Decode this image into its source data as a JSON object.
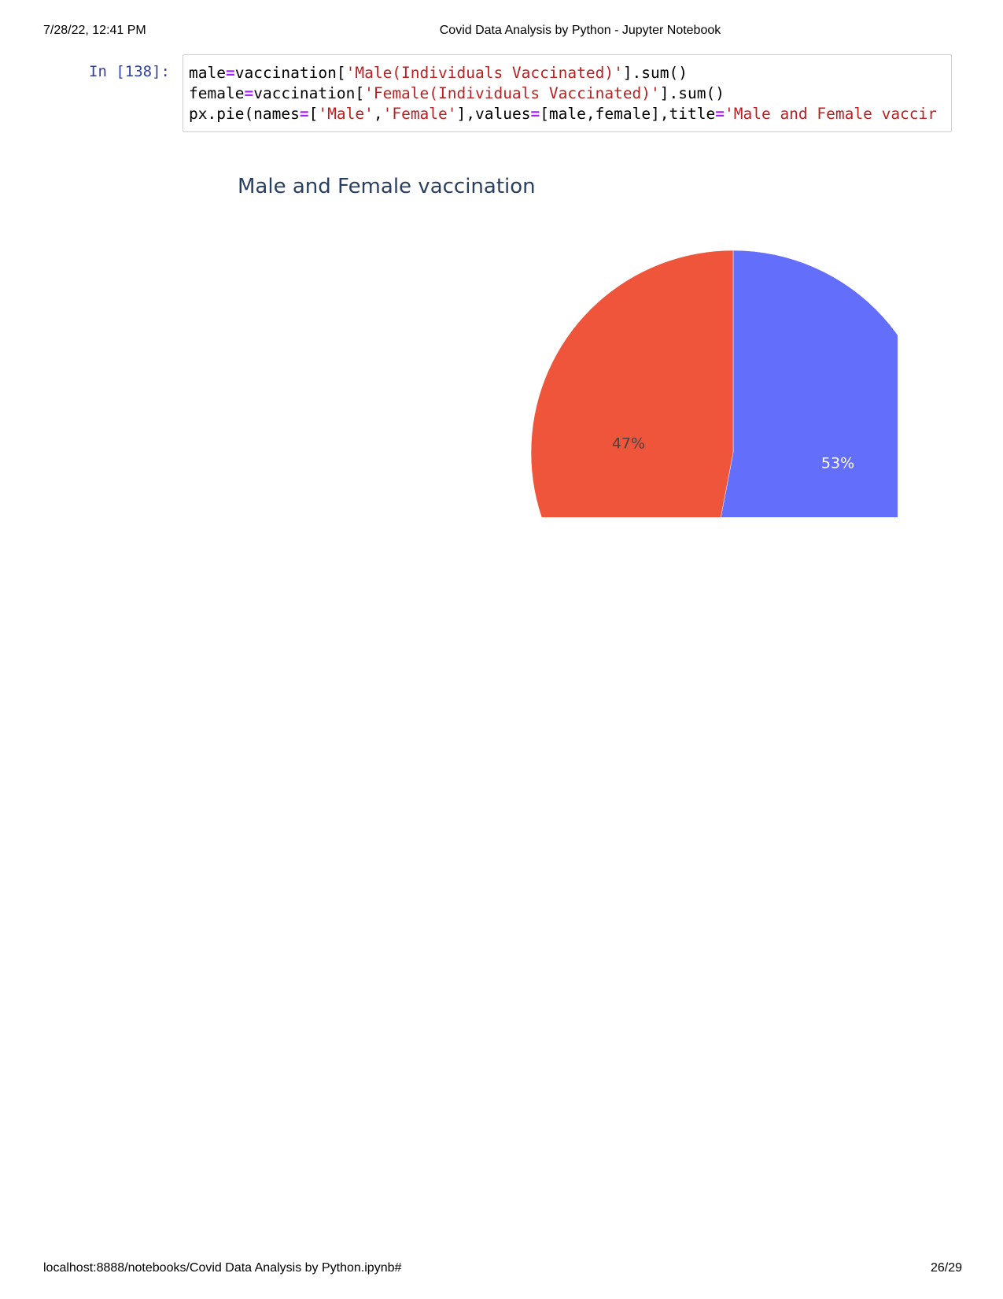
{
  "print_header": {
    "datetime": "7/28/22, 12:41 PM",
    "title": "Covid Data Analysis by Python - Jupyter Notebook"
  },
  "print_footer": {
    "url": "localhost:8888/notebooks/Covid Data Analysis by Python.ipynb#",
    "page": "26/29"
  },
  "cell": {
    "prompt": "In [138]:",
    "code_lines": [
      [
        {
          "t": "male",
          "k": "n"
        },
        {
          "t": "=",
          "k": "op"
        },
        {
          "t": "vaccination[",
          "k": "n"
        },
        {
          "t": "'Male(Individuals Vaccinated)'",
          "k": "str"
        },
        {
          "t": "].sum()",
          "k": "n"
        }
      ],
      [
        {
          "t": "female",
          "k": "n"
        },
        {
          "t": "=",
          "k": "op"
        },
        {
          "t": "vaccination[",
          "k": "n"
        },
        {
          "t": "'Female(Individuals Vaccinated)'",
          "k": "str"
        },
        {
          "t": "].sum()",
          "k": "n"
        }
      ],
      [
        {
          "t": "px.pie(names",
          "k": "n"
        },
        {
          "t": "=",
          "k": "op"
        },
        {
          "t": "[",
          "k": "n"
        },
        {
          "t": "'Male'",
          "k": "str"
        },
        {
          "t": ",",
          "k": "n"
        },
        {
          "t": "'Female'",
          "k": "str"
        },
        {
          "t": "],values",
          "k": "n"
        },
        {
          "t": "=",
          "k": "op"
        },
        {
          "t": "[male,female],title",
          "k": "n"
        },
        {
          "t": "=",
          "k": "op"
        },
        {
          "t": "'Male and Female vaccir",
          "k": "str"
        }
      ]
    ]
  },
  "chart_data": {
    "type": "pie",
    "title": "Male and Female vaccination",
    "slices": [
      {
        "label_text": "53%",
        "percent": 53,
        "color": "#636efa",
        "text_color": "#ffffff"
      },
      {
        "label_text": "47%",
        "percent": 47,
        "color": "#ef553b",
        "text_color": "#444444"
      }
    ],
    "start_angle_deg": 0,
    "direction": "clockwise",
    "title_color": "#2a3f5f"
  }
}
